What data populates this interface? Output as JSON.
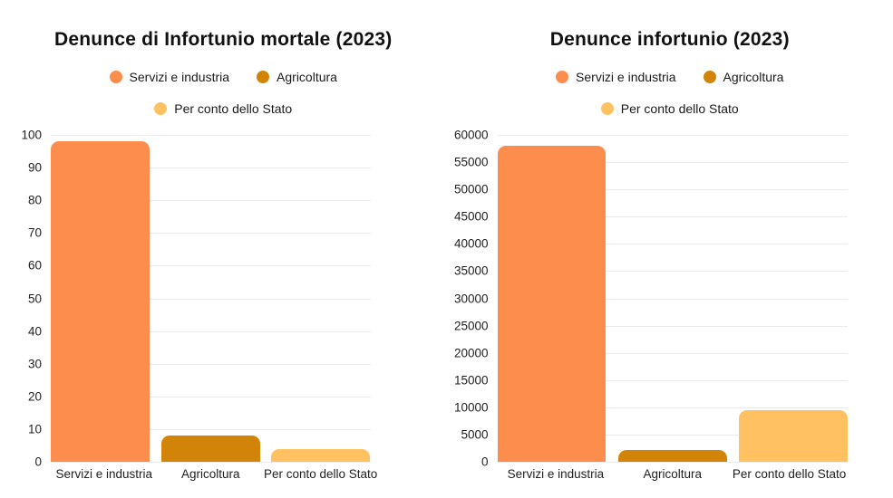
{
  "page": {
    "background_color": "#ffffff"
  },
  "palette": {
    "servizi_e_industria": "#FC8D4D",
    "agricoltura": "#D28409",
    "per_conto_dello_stato": "#FFC161",
    "gridline": "#EAEAEA",
    "title_text": "#111111",
    "axis_text": "#1F1F1F"
  },
  "chart_data": [
    {
      "type": "bar",
      "title": "Denunce di Infortunio mortale (2023)",
      "categories": [
        "Servizi e industria",
        "Agricoltura",
        "Per conto dello Stato"
      ],
      "values": [
        98,
        8,
        4
      ],
      "series_colors": [
        "#FC8D4D",
        "#D28409",
        "#FFC161"
      ],
      "legend": [
        "Servizi e industria",
        "Agricoltura",
        "Per conto dello Stato"
      ],
      "legend_position": "top",
      "grid": true,
      "xlabel": "",
      "ylabel": "",
      "ylim": [
        0,
        100
      ],
      "yticks": [
        0,
        10,
        20,
        30,
        40,
        50,
        60,
        70,
        80,
        90,
        100
      ]
    },
    {
      "type": "bar",
      "title": "Denunce infortunio (2023)",
      "categories": [
        "Servizi e industria",
        "Agricoltura",
        "Per conto dello Stato"
      ],
      "values": [
        58000,
        2100,
        9500
      ],
      "series_colors": [
        "#FC8D4D",
        "#D28409",
        "#FFC161"
      ],
      "legend": [
        "Servizi e industria",
        "Agricoltura",
        "Per conto dello Stato"
      ],
      "legend_position": "top",
      "grid": true,
      "xlabel": "",
      "ylabel": "",
      "ylim": [
        0,
        60000
      ],
      "yticks": [
        0,
        5000,
        10000,
        15000,
        20000,
        25000,
        30000,
        35000,
        40000,
        45000,
        50000,
        55000,
        60000
      ]
    }
  ]
}
